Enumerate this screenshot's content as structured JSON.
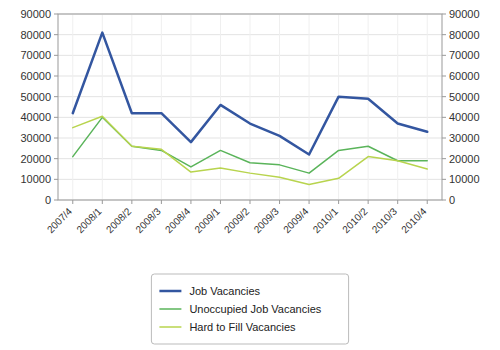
{
  "chart_data": {
    "type": "line",
    "categories": [
      "2007/4",
      "2008/1",
      "2008/2",
      "2008/3",
      "2008/4",
      "2009/1",
      "2009/2",
      "2009/3",
      "2009/4",
      "2010/1",
      "2010/2",
      "2010/3",
      "2010/4"
    ],
    "series": [
      {
        "name": "Job Vacancies",
        "color": "#3356a0",
        "values": [
          42000,
          81000,
          42000,
          42000,
          28000,
          46000,
          37000,
          31000,
          22000,
          50000,
          49000,
          37000,
          33000
        ]
      },
      {
        "name": "Unoccupied Job Vacancies",
        "color": "#5ab45a",
        "values": [
          21000,
          40000,
          26000,
          24000,
          16000,
          24000,
          18000,
          17000,
          13000,
          24000,
          26000,
          19000,
          19000
        ]
      },
      {
        "name": "Hard to Fill Vacancies",
        "color": "#b8d44e",
        "values": [
          35000,
          40500,
          26000,
          24500,
          13500,
          15500,
          13000,
          11000,
          7500,
          10500,
          21000,
          19000,
          15000
        ]
      }
    ],
    "ylim": [
      0,
      90000
    ],
    "yticks": [
      0,
      10000,
      20000,
      30000,
      40000,
      50000,
      60000,
      70000,
      80000,
      90000
    ],
    "y2lim": [
      0,
      90000
    ],
    "y2ticks": [
      0,
      10000,
      20000,
      30000,
      40000,
      50000,
      60000,
      70000,
      80000,
      90000
    ],
    "grid": true,
    "legend": "bottom"
  }
}
